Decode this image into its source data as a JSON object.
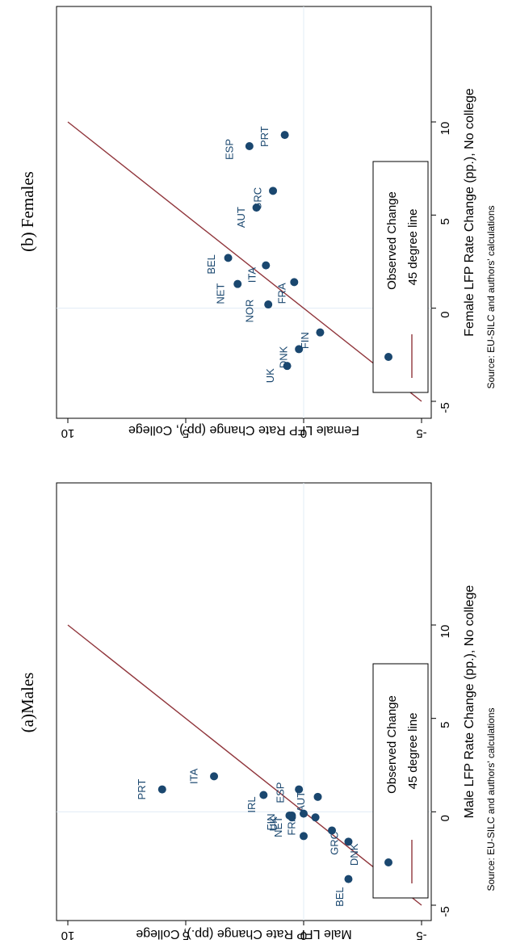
{
  "panels": [
    {
      "title": "(a)Males",
      "source": "Source: EU-SILC and authors' calculations",
      "legend": {
        "point_label": "Observed Change",
        "line_label": "45 degree line"
      }
    },
    {
      "title": "(b) Females",
      "source": "Source: EU-SILC and authors' calculations",
      "legend": {
        "point_label": "Observed Change",
        "line_label": "45 degree line"
      }
    }
  ],
  "colors": {
    "marker": "#1a476f",
    "line": "#90353b",
    "frame": "#000000",
    "refline": "#e1ecf4",
    "label": "#1a476f"
  },
  "chart_data": [
    {
      "type": "scatter",
      "title": "(a)Males",
      "xlabel": "Male LFP Rate Change (pp.), No college",
      "ylabel": "Male LFP Rate Change (pp.), College",
      "xlim": [
        -5,
        10
      ],
      "ylim": [
        -5,
        10
      ],
      "xticks": [
        "-5",
        "0",
        "5",
        "10"
      ],
      "yticks": [
        "-5",
        "0",
        "5",
        "10"
      ],
      "grid": false,
      "legend_position": "bottom-right",
      "series": [
        {
          "name": "Observed Change",
          "points": [
            {
              "label": "PRT",
              "x": 1.2,
              "y": 6.0
            },
            {
              "label": "ITA",
              "x": 1.9,
              "y": 3.8
            },
            {
              "label": "IRL",
              "x": 0.9,
              "y": 1.7
            },
            {
              "label": "ESP",
              "x": 1.2,
              "y": 0.2
            },
            {
              "label": "AUT",
              "x": 0.8,
              "y": -0.6
            },
            {
              "label": "NET",
              "x": -0.2,
              "y": 0.5
            },
            {
              "label": "FIN",
              "x": -0.2,
              "y": 0.6
            },
            {
              "label": "FRA",
              "x": -0.1,
              "y": 0.0
            },
            {
              "label": "UK",
              "x": -0.3,
              "y": 0.5
            },
            {
              "label": "",
              "x": -0.3,
              "y": -0.5
            },
            {
              "label": "",
              "x": -1.3,
              "y": 0.0
            },
            {
              "label": "GRC",
              "x": -1.0,
              "y": -1.2
            },
            {
              "label": "DNK",
              "x": -1.6,
              "y": -1.9
            },
            {
              "label": "BEL",
              "x": -3.6,
              "y": -1.9
            }
          ]
        },
        {
          "name": "45 degree line",
          "x": [
            -5,
            10
          ],
          "y": [
            -5,
            10
          ]
        }
      ]
    },
    {
      "type": "scatter",
      "title": "(b) Females",
      "xlabel": "Female LFP Rate Change (pp.), No college",
      "ylabel": "Female LFP Rate Change (pp.), College",
      "xlim": [
        -5,
        10
      ],
      "ylim": [
        -5,
        10
      ],
      "xticks": [
        "-5",
        "0",
        "5",
        "10"
      ],
      "yticks": [
        "-5",
        "0",
        "5",
        "10"
      ],
      "grid": false,
      "legend_position": "bottom-right",
      "series": [
        {
          "name": "Observed Change",
          "points": [
            {
              "label": "PRT",
              "x": 9.3,
              "y": 0.8
            },
            {
              "label": "ESP",
              "x": 8.7,
              "y": 2.3
            },
            {
              "label": "GRC",
              "x": 6.3,
              "y": 1.3
            },
            {
              "label": "AUT",
              "x": 5.4,
              "y": 2.0
            },
            {
              "label": "BEL",
              "x": 2.7,
              "y": 3.2
            },
            {
              "label": "ITA",
              "x": 2.3,
              "y": 1.6
            },
            {
              "label": "NET",
              "x": 1.3,
              "y": 2.8
            },
            {
              "label": "FRA",
              "x": 1.4,
              "y": 0.4
            },
            {
              "label": "NOR",
              "x": 0.2,
              "y": 1.5
            },
            {
              "label": "FIN",
              "x": -1.3,
              "y": -0.7
            },
            {
              "label": "DNK",
              "x": -2.2,
              "y": 0.2
            },
            {
              "label": "UK",
              "x": -3.1,
              "y": 0.7
            },
            {
              "label": "IRL",
              "x": -2.4,
              "y": -4.9
            }
          ]
        },
        {
          "name": "45 degree line",
          "x": [
            -5,
            10
          ],
          "y": [
            -5,
            10
          ]
        }
      ]
    }
  ]
}
